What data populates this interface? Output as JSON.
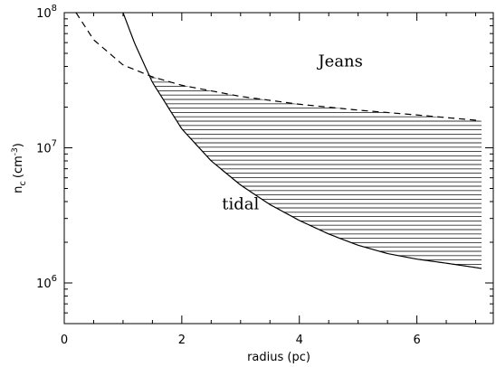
{
  "chart_data": {
    "type": "line",
    "title": "",
    "xlabel": "radius (pc)",
    "ylabel": "n",
    "ylabel_subscript": "c",
    "ylabel_unit": "(cm",
    "ylabel_unit_exp": "-3",
    "ylabel_unit_close": ")",
    "xlim": [
      0,
      7.3
    ],
    "ylim": [
      500000,
      100000000
    ],
    "yscale": "log",
    "xticks": [
      {
        "value": 0,
        "label": "0"
      },
      {
        "value": 2,
        "label": "2"
      },
      {
        "value": 4,
        "label": "4"
      },
      {
        "value": 6,
        "label": "6"
      }
    ],
    "yticks": [
      {
        "value": 1000000,
        "base": "10",
        "exp": "6"
      },
      {
        "value": 10000000,
        "base": "10",
        "exp": "7"
      },
      {
        "value": 100000000,
        "base": "10",
        "exp": "8"
      }
    ],
    "series": [
      {
        "key": "tidal",
        "style": "solid",
        "x": [
          1.0,
          1.2,
          1.5,
          2.0,
          2.5,
          3.0,
          3.5,
          4.0,
          4.5,
          5.0,
          5.5,
          6.0,
          6.5,
          7.0,
          7.1
        ],
        "y": [
          100000000,
          59000000,
          30500000,
          13800000,
          8000000,
          5300000,
          3800000,
          2900000,
          2300000,
          1900000,
          1650000,
          1500000,
          1400000,
          1300000,
          1280000
        ]
      },
      {
        "key": "jeans",
        "style": "dashed",
        "x": [
          0.2,
          0.5,
          1.0,
          1.5,
          2.0,
          3.0,
          4.0,
          5.0,
          6.0,
          7.0,
          7.1
        ],
        "y": [
          100000000,
          63000000,
          41000000,
          33500000,
          29000000,
          24000000,
          21000000,
          19000000,
          17500000,
          16000000,
          15800000
        ]
      }
    ],
    "shaded_region": {
      "between": [
        "tidal",
        "jeans"
      ],
      "pattern": "horizontal-hatch"
    },
    "annotations": [
      {
        "text": "Jeans",
        "x": 4.7,
        "y": 40000000
      },
      {
        "text": "tidal",
        "x": 3.0,
        "y": 3500000
      }
    ]
  }
}
